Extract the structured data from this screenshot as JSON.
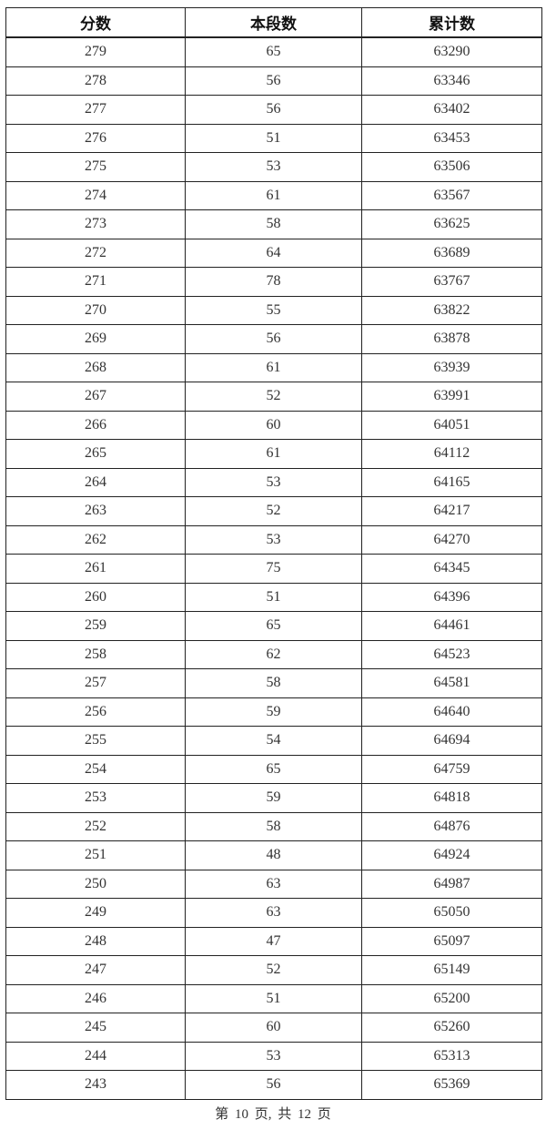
{
  "table": {
    "headers": [
      "分数",
      "本段数",
      "累计数"
    ],
    "rows": [
      [
        "279",
        "65",
        "63290"
      ],
      [
        "278",
        "56",
        "63346"
      ],
      [
        "277",
        "56",
        "63402"
      ],
      [
        "276",
        "51",
        "63453"
      ],
      [
        "275",
        "53",
        "63506"
      ],
      [
        "274",
        "61",
        "63567"
      ],
      [
        "273",
        "58",
        "63625"
      ],
      [
        "272",
        "64",
        "63689"
      ],
      [
        "271",
        "78",
        "63767"
      ],
      [
        "270",
        "55",
        "63822"
      ],
      [
        "269",
        "56",
        "63878"
      ],
      [
        "268",
        "61",
        "63939"
      ],
      [
        "267",
        "52",
        "63991"
      ],
      [
        "266",
        "60",
        "64051"
      ],
      [
        "265",
        "61",
        "64112"
      ],
      [
        "264",
        "53",
        "64165"
      ],
      [
        "263",
        "52",
        "64217"
      ],
      [
        "262",
        "53",
        "64270"
      ],
      [
        "261",
        "75",
        "64345"
      ],
      [
        "260",
        "51",
        "64396"
      ],
      [
        "259",
        "65",
        "64461"
      ],
      [
        "258",
        "62",
        "64523"
      ],
      [
        "257",
        "58",
        "64581"
      ],
      [
        "256",
        "59",
        "64640"
      ],
      [
        "255",
        "54",
        "64694"
      ],
      [
        "254",
        "65",
        "64759"
      ],
      [
        "253",
        "59",
        "64818"
      ],
      [
        "252",
        "58",
        "64876"
      ],
      [
        "251",
        "48",
        "64924"
      ],
      [
        "250",
        "63",
        "64987"
      ],
      [
        "249",
        "63",
        "65050"
      ],
      [
        "248",
        "47",
        "65097"
      ],
      [
        "247",
        "52",
        "65149"
      ],
      [
        "246",
        "51",
        "65200"
      ],
      [
        "245",
        "60",
        "65260"
      ],
      [
        "244",
        "53",
        "65313"
      ],
      [
        "243",
        "56",
        "65369"
      ]
    ]
  },
  "footer": {
    "page_label": "第 10 页, 共 12 页"
  }
}
